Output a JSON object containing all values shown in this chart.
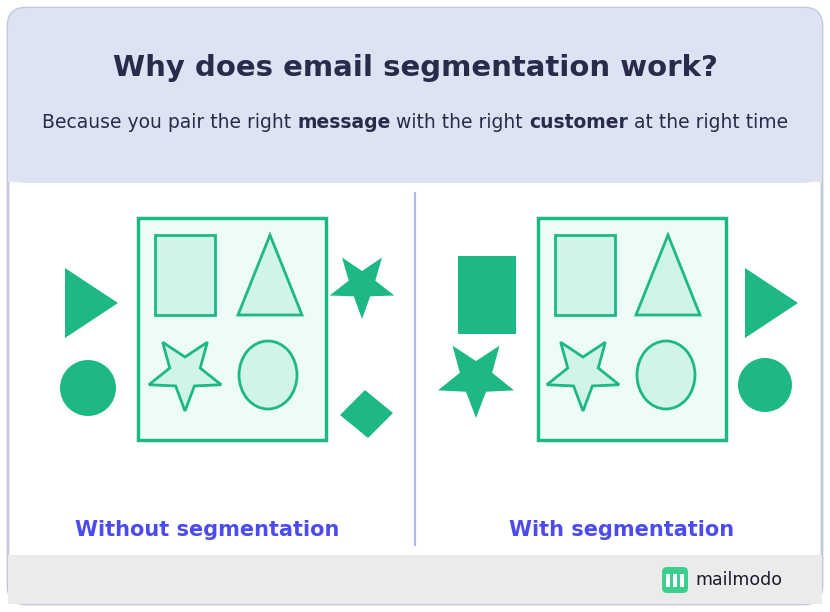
{
  "title": "Why does email segmentation work?",
  "subtitle_parts": [
    [
      "Because you pair the right ",
      false
    ],
    [
      "message",
      true
    ],
    [
      " with the right ",
      false
    ],
    [
      "customer",
      true
    ],
    [
      " at the right time",
      false
    ]
  ],
  "label_left": "Without segmentation",
  "label_right": "With segmentation",
  "green_solid": "#1db886",
  "green_light_fill": "#d0f5e8",
  "green_border": "#1db886",
  "header_bg": "#dde3f2",
  "body_bg": "#ffffff",
  "footer_bg": "#ebebeb",
  "title_color": "#2a2a4a",
  "subtitle_color": "#2a2a4a",
  "label_color": "#4b4bef",
  "divider_color": "#b0b8e8",
  "outer_border": "#c5c9dc",
  "mailmodo_color": "#1a1a2e",
  "icon_color": "#3ecf8e"
}
